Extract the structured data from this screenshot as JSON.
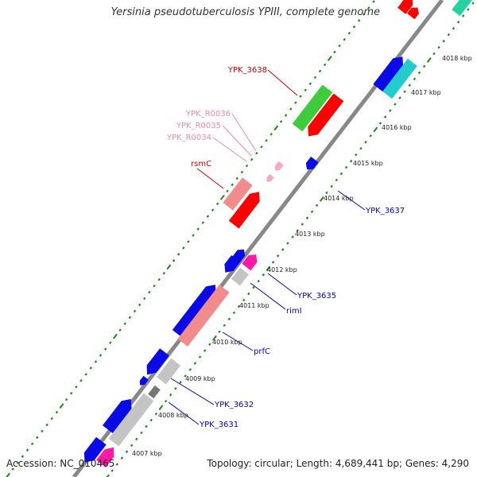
{
  "title": "Yersinia pseudotuberculosis YPIII, complete genome",
  "footer": {
    "accession_label": "Accession:",
    "accession": "NC_010465",
    "topology_label": "Topology:",
    "topology": "circular",
    "length_label": "Length:",
    "length": "4,689,441 bp",
    "genes_label": "Genes:",
    "genes": "4,290"
  },
  "colors": {
    "backbone": "#888888",
    "tick_major": "#1a8a1a",
    "tick_minor": "#1a8a1a",
    "gene_blue": "#0a0ae6",
    "gene_red": "#ff0000",
    "gene_pink": "#f08c8c",
    "gene_lightpink": "#f5a8c8",
    "gene_green": "#3ccc3c",
    "gene_cyan": "#22cccc",
    "gene_gray": "#c4c4c4",
    "gene_darkgray": "#777777",
    "gene_magenta": "#ff1aa6",
    "gene_teal": "#22d3a0",
    "label_red": "#cc0000",
    "label_pink": "#ee88aa",
    "label_blue": "#0000cc"
  },
  "scale_labels": [
    "4007 kbp",
    "4008 kbp",
    "4009 kbp",
    "4010 kbp",
    "4011 kbp",
    "4012 kbp",
    "4013 kbp",
    "4014 kbp",
    "4015 kbp",
    "4016 kbp",
    "4017 kbp",
    "4018 kbp"
  ],
  "gene_labels": [
    {
      "text": "YPK_3638",
      "color": "label_red"
    },
    {
      "text": "YPK_R0036",
      "color": "label_pink"
    },
    {
      "text": "YPK_R0035",
      "color": "label_pink"
    },
    {
      "text": "YPK_R0034",
      "color": "label_pink"
    },
    {
      "text": "rsmC",
      "color": "label_red"
    },
    {
      "text": "YPK_3637",
      "color": "label_blue"
    },
    {
      "text": "YPK_3635",
      "color": "label_blue"
    },
    {
      "text": "rimI",
      "color": "label_blue"
    },
    {
      "text": "prfC",
      "color": "label_blue"
    },
    {
      "text": "YPK_3632",
      "color": "label_blue"
    },
    {
      "text": "YPK_3631",
      "color": "label_blue"
    }
  ]
}
